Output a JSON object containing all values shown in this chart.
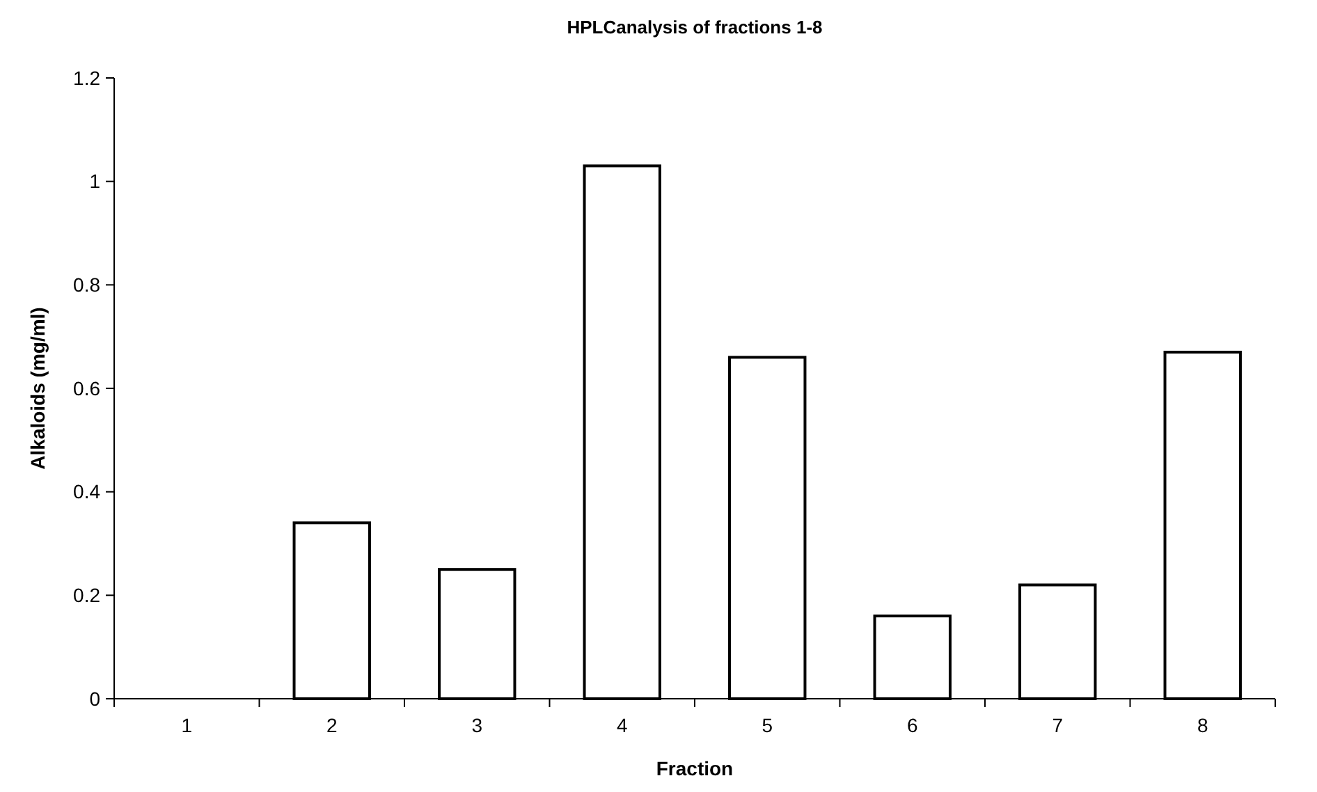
{
  "chart_data": {
    "type": "bar",
    "title": "HPLCanalysis of fractions 1-8",
    "xlabel": "Fraction",
    "ylabel": "Alkaloids (mg/ml)",
    "categories": [
      "1",
      "2",
      "3",
      "4",
      "5",
      "6",
      "7",
      "8"
    ],
    "values": [
      0,
      0.34,
      0.25,
      1.03,
      0.66,
      0.16,
      0.22,
      0.67
    ],
    "color": "#ffffff",
    "ylim": [
      0,
      1.2
    ],
    "yticks": [
      0,
      0.2,
      0.4,
      0.6,
      0.8,
      1,
      1.2
    ],
    "grid": false
  }
}
